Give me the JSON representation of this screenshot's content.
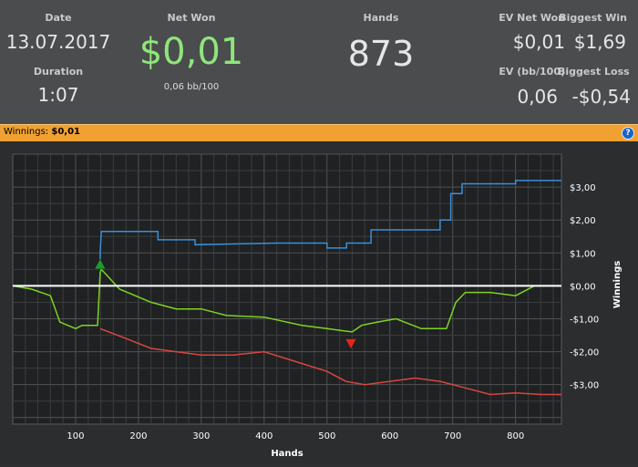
{
  "stats": {
    "date_label": "Date",
    "date_value": "13.07.2017",
    "duration_label": "Duration",
    "duration_value": "1:07",
    "net_won_label": "Net Won",
    "net_won_value": "$0,01",
    "net_won_sub": "0,06 bb/100",
    "hands_label": "Hands",
    "hands_value": "873",
    "ev_net_won_label": "EV Net Won",
    "ev_net_won_value": "$0,01",
    "biggest_win_label": "Biggest Win",
    "biggest_win_value": "$1,69",
    "ev_bb100_label": "EV (bb/100)",
    "ev_bb100_value": "0,06",
    "biggest_loss_label": "Biggest Loss",
    "biggest_loss_value": "-$0,54"
  },
  "colors": {
    "net_won": "#8ee67a",
    "orange_bar": "#f0a132",
    "series_blue": "#3b8fd8",
    "series_green": "#7ed321",
    "series_red": "#d8463e"
  },
  "header_bar": {
    "label": "Winnings:",
    "value": "$0,01",
    "help_glyph": "?"
  },
  "chart_data": {
    "type": "line",
    "xlabel": "Hands",
    "ylabel": "Winnings",
    "xlim": [
      0,
      873
    ],
    "ylim": [
      -4.2,
      4.0
    ],
    "x_ticks": [
      100,
      200,
      300,
      400,
      500,
      600,
      700,
      800
    ],
    "x_tick_labels": [
      "100",
      "200",
      "300",
      "400",
      "500",
      "600",
      "700",
      "800"
    ],
    "y_ticks": [
      3,
      2,
      1,
      0,
      -1,
      -2,
      -3
    ],
    "y_tick_labels": [
      "$3,00",
      "$2,00",
      "$1,00",
      "$0,00",
      "-$1,00",
      "-$2,00",
      "-$3,00"
    ],
    "grid": true,
    "series": [
      {
        "color": "#3b8fd8",
        "x": [
          139,
          139,
          141,
          231,
          231,
          290,
          290,
          420,
          420,
          500,
          500,
          531,
          531,
          570,
          570,
          680,
          680,
          697,
          697,
          715,
          715,
          800,
          800,
          873
        ],
        "y": [
          0.7,
          1.0,
          1.65,
          1.65,
          1.4,
          1.4,
          1.25,
          1.3,
          1.3,
          1.3,
          1.15,
          1.15,
          1.3,
          1.3,
          1.7,
          1.7,
          2.0,
          2.0,
          2.8,
          2.8,
          3.1,
          3.1,
          3.2,
          3.2
        ]
      },
      {
        "color": "#7ed321",
        "x": [
          0,
          30,
          60,
          75,
          100,
          110,
          135,
          139,
          141,
          170,
          220,
          260,
          300,
          340,
          400,
          460,
          500,
          520,
          540,
          555,
          580,
          610,
          650,
          690,
          705,
          720,
          760,
          800,
          830,
          860,
          873
        ],
        "y": [
          0,
          -0.1,
          -0.3,
          -1.1,
          -1.3,
          -1.2,
          -1.2,
          0.4,
          0.5,
          -0.1,
          -0.5,
          -0.7,
          -0.7,
          -0.9,
          -0.95,
          -1.2,
          -1.3,
          -1.35,
          -1.4,
          -1.2,
          -1.1,
          -1.0,
          -1.3,
          -1.3,
          -0.5,
          -0.2,
          -0.2,
          -0.3,
          0.0,
          0.0,
          0.0
        ]
      },
      {
        "color": "#d8463e",
        "x": [
          139,
          180,
          220,
          260,
          300,
          350,
          400,
          450,
          500,
          530,
          560,
          600,
          640,
          680,
          720,
          760,
          800,
          840,
          873
        ],
        "y": [
          -1.3,
          -1.6,
          -1.9,
          -2.0,
          -2.1,
          -2.1,
          -2.0,
          -2.3,
          -2.6,
          -2.9,
          -3.0,
          -2.9,
          -2.8,
          -2.9,
          -3.1,
          -3.3,
          -3.25,
          -3.3,
          -3.3
        ]
      },
      {
        "color": "#ffffff",
        "x": [
          0,
          873
        ],
        "y": [
          0,
          0
        ]
      }
    ],
    "markers": [
      {
        "type": "triangle-up",
        "color": "#1f9a2b",
        "x": 139,
        "y": 0.65
      },
      {
        "type": "triangle-down",
        "color": "#e3261b",
        "x": 538,
        "y": -1.75
      }
    ]
  }
}
